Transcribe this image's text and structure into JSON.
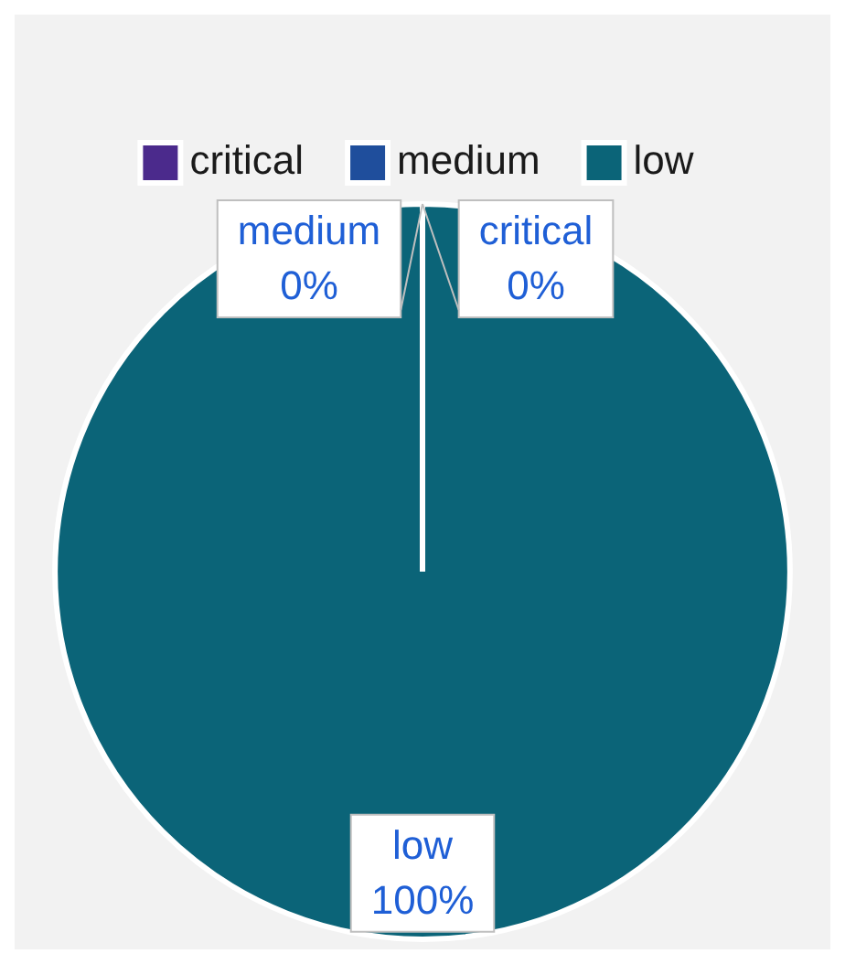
{
  "chart_data": {
    "type": "pie",
    "categories": [
      "critical",
      "medium",
      "low"
    ],
    "values": [
      0,
      0,
      100
    ],
    "colors": [
      "#4b2a8c",
      "#1f4e9c",
      "#0b6478"
    ],
    "legend": "top",
    "value_labels": [
      "0%",
      "0%",
      "100%"
    ]
  }
}
